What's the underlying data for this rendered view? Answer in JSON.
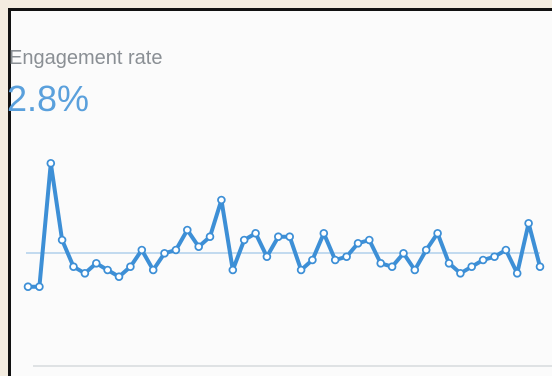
{
  "metric": {
    "label": "Engagement rate",
    "value": "2.8%"
  },
  "colors": {
    "line": "#3d8fd6",
    "value_text": "#5aa0dc",
    "label_text": "#8a8f94",
    "average_line": "#9fc7e8",
    "point_fill": "#ffffff"
  },
  "chart_data": {
    "type": "line",
    "show_average_line": true,
    "values": [
      1.6,
      1.6,
      5.3,
      3.0,
      2.2,
      2.0,
      2.3,
      2.1,
      1.9,
      2.2,
      2.7,
      2.1,
      2.6,
      2.7,
      3.3,
      2.8,
      3.1,
      4.2,
      2.1,
      3.0,
      3.2,
      2.5,
      3.1,
      3.1,
      2.1,
      2.4,
      3.2,
      2.4,
      2.5,
      2.9,
      3.0,
      2.3,
      2.2,
      2.6,
      2.1,
      2.7,
      3.2,
      2.3,
      2.0,
      2.2,
      2.4,
      2.5,
      2.7,
      2.0,
      3.5,
      2.2
    ],
    "ylim": [
      0,
      6
    ]
  }
}
